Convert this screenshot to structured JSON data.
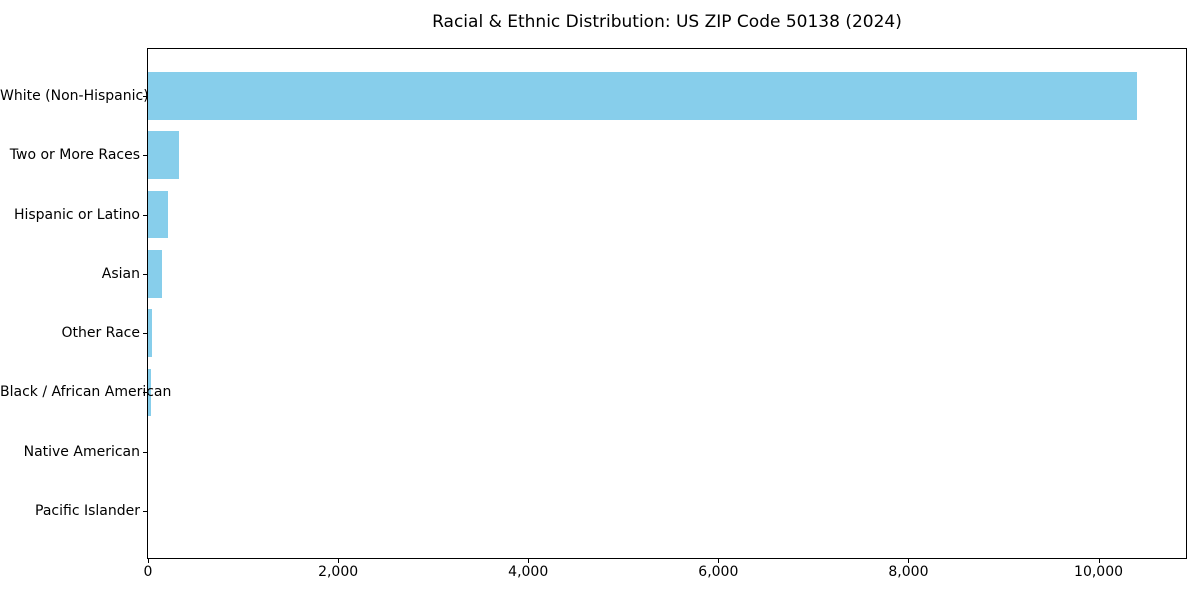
{
  "chart_data": {
    "type": "bar",
    "orientation": "horizontal",
    "title": "Racial & Ethnic Distribution: US ZIP Code 50138 (2024)",
    "categories": [
      "White (Non-Hispanic)",
      "Two or More Races",
      "Hispanic or Latino",
      "Asian",
      "Other Race",
      "Black / African American",
      "Native American",
      "Pacific Islander"
    ],
    "values": [
      10400,
      330,
      210,
      145,
      40,
      35,
      0,
      0
    ],
    "xlabel": "",
    "ylabel": "",
    "xlim": [
      0,
      10920
    ],
    "x_ticks": [
      0,
      2000,
      4000,
      6000,
      8000,
      10000
    ],
    "x_tick_labels": [
      "0",
      "2,000",
      "4,000",
      "6,000",
      "8,000",
      "10,000"
    ],
    "bar_color": "#87CEEB",
    "axis_color": "#000000",
    "text_color": "#000000",
    "grid": false,
    "legend": null
  }
}
